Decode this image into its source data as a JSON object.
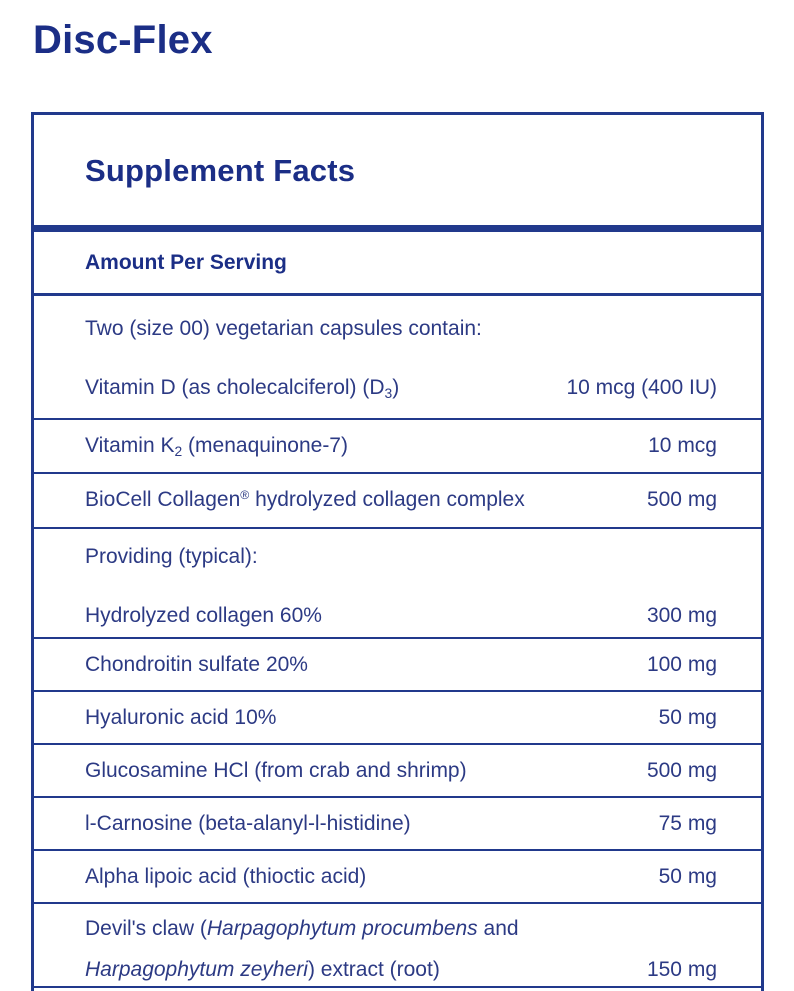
{
  "page": {
    "title": "Disc-Flex"
  },
  "panel": {
    "header": "Supplement Facts",
    "subheader": "Amount Per Serving",
    "colors": {
      "brand_blue": "#1b2e86",
      "line_blue": "#21398c",
      "text_blue": "#2c3a84",
      "background": "#ffffff"
    },
    "rows": [
      {
        "kind": "group",
        "lines": [
          {
            "kind": "intro",
            "segments": [
              {
                "text": "Two (size 00) vegetarian capsules contain:"
              }
            ]
          },
          {
            "segments": [
              {
                "text": "Vitamin D (as cholecalciferol) (D"
              },
              {
                "text": "3",
                "fmt": "sub"
              },
              {
                "text": ")"
              }
            ],
            "amount": "10 mcg (400 IU)"
          }
        ]
      },
      {
        "lines": [
          {
            "segments": [
              {
                "text": "Vitamin K"
              },
              {
                "text": "2",
                "fmt": "sub"
              },
              {
                "text": " (menaquinone-7)"
              }
            ],
            "amount": "10 mcg"
          }
        ]
      },
      {
        "lines": [
          {
            "segments": [
              {
                "text": "BioCell Collagen"
              },
              {
                "text": "®",
                "fmt": "sup"
              },
              {
                "text": " hydrolyzed collagen complex"
              }
            ],
            "amount": "500 mg"
          }
        ]
      },
      {
        "kind": "group",
        "lines": [
          {
            "kind": "intro",
            "segments": [
              {
                "text": "Providing (typical):"
              }
            ]
          },
          {
            "segments": [
              {
                "text": "Hydrolyzed collagen 60%"
              }
            ],
            "amount": "300 mg"
          }
        ]
      },
      {
        "lines": [
          {
            "segments": [
              {
                "text": "Chondroitin sulfate 20%"
              }
            ],
            "amount": "100 mg"
          }
        ]
      },
      {
        "lines": [
          {
            "segments": [
              {
                "text": "Hyaluronic acid 10%"
              }
            ],
            "amount": "50 mg"
          }
        ]
      },
      {
        "lines": [
          {
            "segments": [
              {
                "text": "Glucosamine HCl (from crab and shrimp)"
              }
            ],
            "amount": "500 mg"
          }
        ]
      },
      {
        "lines": [
          {
            "segments": [
              {
                "text": "l-Carnosine (beta-alanyl-l-histidine)"
              }
            ],
            "amount": "75 mg"
          }
        ]
      },
      {
        "lines": [
          {
            "segments": [
              {
                "text": "Alpha lipoic acid (thioctic acid)"
              }
            ],
            "amount": "50 mg"
          }
        ]
      },
      {
        "kind": "wrapped",
        "lines": [
          {
            "segments": [
              {
                "text": "Devil's claw ("
              },
              {
                "text": "Harpagophytum procumbens",
                "fmt": "italic"
              },
              {
                "text": " and"
              }
            ]
          },
          {
            "segments": [
              {
                "text": "Harpagophytum zeyheri",
                "fmt": "italic"
              },
              {
                "text": ") extract (root)"
              }
            ],
            "amount": "150 mg"
          }
        ]
      }
    ]
  }
}
